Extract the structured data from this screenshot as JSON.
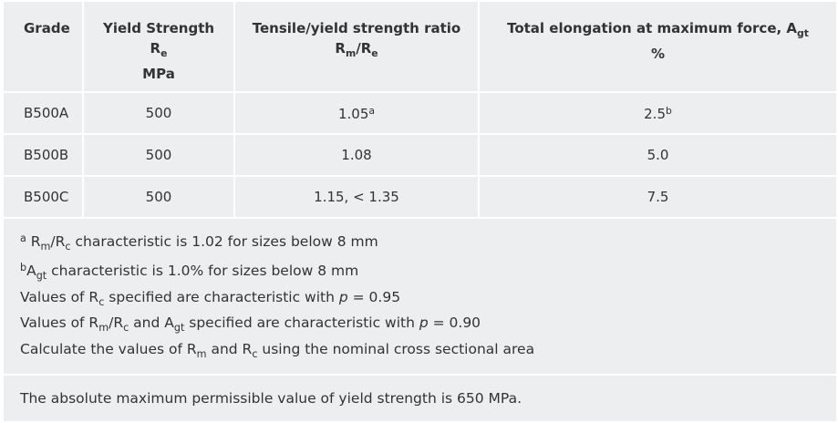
{
  "table": {
    "header": [
      [
        [
          {
            "text": "Grade"
          }
        ]
      ],
      [
        [
          {
            "text": "Yield Strength"
          }
        ],
        [
          {
            "text": "R"
          },
          {
            "text": "e",
            "style": "sub"
          }
        ],
        [
          {
            "text": "MPa"
          }
        ]
      ],
      [
        [
          {
            "text": "Tensile/yield strength ratio"
          }
        ],
        [
          {
            "text": "R"
          },
          {
            "text": "m",
            "style": "sub"
          },
          {
            "text": "/R"
          },
          {
            "text": "e",
            "style": "sub"
          }
        ]
      ],
      [
        [
          {
            "text": "Total elongation at maximum force, A"
          },
          {
            "text": "gt",
            "style": "sub"
          }
        ],
        [
          {
            "text": "%"
          }
        ]
      ]
    ],
    "rows": [
      [
        [
          [
            {
              "text": "B500A"
            }
          ]
        ],
        [
          [
            {
              "text": "500"
            }
          ]
        ],
        [
          [
            {
              "text": "1.05"
            },
            {
              "text": "a",
              "style": "sup"
            }
          ]
        ],
        [
          [
            {
              "text": "2.5"
            },
            {
              "text": "b",
              "style": "sup"
            }
          ]
        ]
      ],
      [
        [
          [
            {
              "text": "B500B"
            }
          ]
        ],
        [
          [
            {
              "text": "500"
            }
          ]
        ],
        [
          [
            {
              "text": "1.08"
            }
          ]
        ],
        [
          [
            {
              "text": "5.0"
            }
          ]
        ]
      ],
      [
        [
          [
            {
              "text": "B500C"
            }
          ]
        ],
        [
          [
            {
              "text": "500"
            }
          ]
        ],
        [
          [
            {
              "text": "1.15, < 1.35"
            }
          ]
        ],
        [
          [
            {
              "text": "7.5"
            }
          ]
        ]
      ]
    ],
    "notes": [
      [
        {
          "text": "a",
          "style": "sup"
        },
        {
          "text": " R"
        },
        {
          "text": "m",
          "style": "sub"
        },
        {
          "text": "/R"
        },
        {
          "text": "c",
          "style": "sub"
        },
        {
          "text": " characteristic is 1.02 for sizes below 8 mm"
        }
      ],
      [
        {
          "text": "b",
          "style": "sup"
        },
        {
          "text": "A"
        },
        {
          "text": "gt",
          "style": "sub"
        },
        {
          "text": " characteristic is 1.0% for sizes below 8 mm"
        }
      ],
      [
        {
          "text": "Values of R"
        },
        {
          "text": "c",
          "style": "sub"
        },
        {
          "text": " specified are characteristic with "
        },
        {
          "text": "p",
          "style": "italic"
        },
        {
          "text": " = 0.95"
        }
      ],
      [
        {
          "text": "Values of R"
        },
        {
          "text": "m",
          "style": "sub"
        },
        {
          "text": "/R"
        },
        {
          "text": "c",
          "style": "sub"
        },
        {
          "text": " and A"
        },
        {
          "text": "gt",
          "style": "sub"
        },
        {
          "text": " specified are characteristic with "
        },
        {
          "text": "p",
          "style": "italic"
        },
        {
          "text": " = 0.90"
        }
      ],
      [
        {
          "text": "Calculate the values of R"
        },
        {
          "text": "m",
          "style": "sub"
        },
        {
          "text": " and R"
        },
        {
          "text": "c",
          "style": "sub"
        },
        {
          "text": " using the nominal cross sectional area"
        }
      ]
    ],
    "footer": [
      {
        "text": "The absolute maximum permissible value of yield strength is 650 MPa."
      }
    ]
  }
}
